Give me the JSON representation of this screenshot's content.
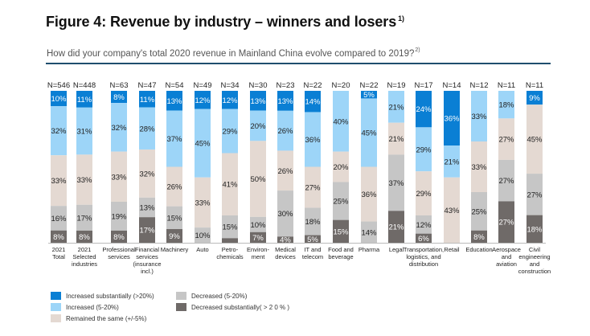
{
  "header": {
    "title": "Figure 4: Revenue by industry – winners and losers",
    "title_footnote": "1)",
    "subtitle": "How did your company's total 2020 revenue in Mainland China evolve compared to 2019?",
    "subtitle_footnote": "2)"
  },
  "chart_data": {
    "type": "bar",
    "stacked": true,
    "orientation": "vertical",
    "title": "Figure 4: Revenue by industry – winners and losers",
    "subtitle": "How did your company's total 2020 revenue in Mainland China evolve compared to 2019?",
    "xlabel": "",
    "ylabel": "",
    "ylim": [
      0,
      100
    ],
    "unit": "%",
    "grid": false,
    "legend_position": "bottom-left",
    "categories": [
      "2021 Total",
      "2021 Selected industries",
      "Professional services",
      "Financial services (insurance incl.)",
      "Machinery",
      "Auto",
      "Petro-chemicals",
      "Environ-ment",
      "Medical devices",
      "IT and telecom",
      "Food and beverage",
      "Pharma",
      "Legal",
      "Transportation, logistics, and distribution",
      "Retail",
      "Education",
      "Aerospace and aviation",
      "Civil engineering and construction"
    ],
    "category_lines": [
      [
        "2021",
        "Total"
      ],
      [
        "2021",
        "Selected",
        "industries"
      ],
      [
        "Professional",
        "services"
      ],
      [
        "Financial",
        "services",
        "(insurance",
        "incl.)"
      ],
      [
        "Machinery"
      ],
      [
        "Auto"
      ],
      [
        "Petro-",
        "chemicals"
      ],
      [
        "Environ-",
        "ment"
      ],
      [
        "Medical",
        "devices"
      ],
      [
        "IT and",
        "telecom"
      ],
      [
        "Food and",
        "beverage"
      ],
      [
        "Pharma"
      ],
      [
        "Legal"
      ],
      [
        "Transportation,",
        "logistics, and",
        "distribution"
      ],
      [
        "Retail"
      ],
      [
        "Education"
      ],
      [
        "Aerospace",
        "and",
        "aviation"
      ],
      [
        "Civil",
        "engineering",
        "and",
        "construction"
      ]
    ],
    "sample_sizes": [
      "N=546",
      "N=448",
      "N=63",
      "N=47",
      "N=54",
      "N=49",
      "N=34",
      "N=30",
      "N=23",
      "N=22",
      "N=20",
      "N=22",
      "N=19",
      "N=17",
      "N=14",
      "N=12",
      "N=11",
      "N=11"
    ],
    "series": [
      {
        "name": "Increased substantially (>20%)",
        "color": "#0a7fd4",
        "label_color": "#ffffff",
        "values": [
          10,
          11,
          8,
          11,
          13,
          12,
          12,
          13,
          13,
          14,
          0,
          5,
          0,
          24,
          36,
          0,
          0,
          9
        ]
      },
      {
        "name": "Increased (5-20%)",
        "color": "#9dd5f8",
        "label_color": "#222222",
        "values": [
          32,
          31,
          32,
          28,
          37,
          45,
          29,
          20,
          26,
          36,
          40,
          45,
          21,
          29,
          21,
          33,
          18,
          0
        ]
      },
      {
        "name": "Remained the same (+/-5%)",
        "color": "#e4d9d2",
        "label_color": "#222222",
        "values": [
          33,
          33,
          33,
          32,
          26,
          33,
          41,
          50,
          26,
          27,
          20,
          36,
          21,
          29,
          43,
          33,
          27,
          45
        ]
      },
      {
        "name": "Decreased (5-20%)",
        "color": "#c6c6c6",
        "label_color": "#222222",
        "values": [
          16,
          17,
          19,
          13,
          15,
          10,
          15,
          10,
          30,
          18,
          25,
          14,
          37,
          12,
          0,
          25,
          27,
          27
        ]
      },
      {
        "name": "Decreased substantially( > 2 0 % )",
        "color": "#6f6a68",
        "label_color": "#ffffff",
        "values": [
          8,
          8,
          8,
          17,
          9,
          0,
          3,
          7,
          4,
          5,
          15,
          0,
          21,
          6,
          0,
          8,
          27,
          18
        ]
      }
    ],
    "unlabeled_segments": [
      [
        6,
        4
      ]
    ]
  },
  "legend": {
    "items": [
      {
        "label": "Increased substantially (>20%)",
        "color": "#0a7fd4"
      },
      {
        "label": "Increased (5-20%)",
        "color": "#9dd5f8"
      },
      {
        "label": "Remained the same (+/-5%)",
        "color": "#e4d9d2"
      },
      {
        "label": "Decreased (5-20%)",
        "color": "#c6c6c6"
      },
      {
        "label": "Decreased substantially( > 2 0 % )",
        "color": "#6f6a68"
      }
    ]
  }
}
